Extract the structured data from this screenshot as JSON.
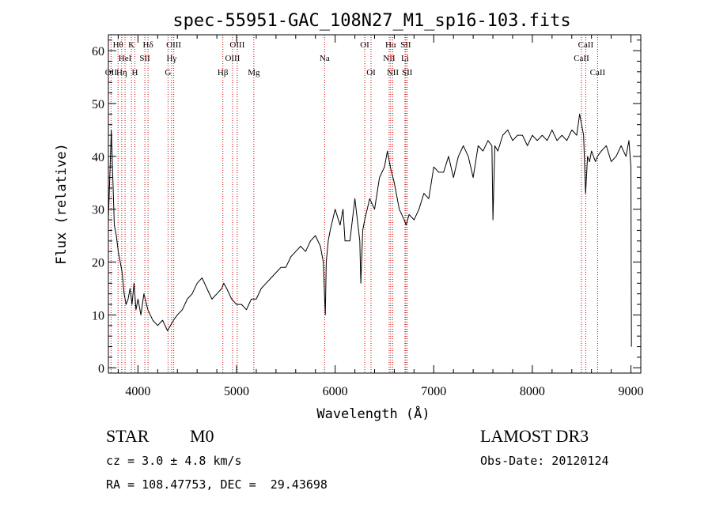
{
  "chart_data": {
    "type": "line",
    "title": "spec-55951-GAC_108N27_M1_sp16-103.fits",
    "xlabel": "Wavelength (Å)",
    "ylabel": "Flux (relative)",
    "xlim": [
      3700,
      9100
    ],
    "ylim": [
      -1,
      63
    ],
    "x_ticks": [
      4000,
      5000,
      6000,
      7000,
      8000,
      9000
    ],
    "y_ticks": [
      0,
      10,
      20,
      30,
      40,
      50,
      60
    ],
    "line_color": "#000000",
    "marker_color": "#cc0000",
    "series": [
      {
        "name": "spectrum",
        "x": [
          3700,
          3730,
          3760,
          3780,
          3800,
          3820,
          3840,
          3860,
          3880,
          3900,
          3920,
          3940,
          3960,
          3980,
          4000,
          4030,
          4060,
          4100,
          4150,
          4200,
          4250,
          4300,
          4330,
          4360,
          4400,
          4450,
          4500,
          4550,
          4600,
          4650,
          4700,
          4750,
          4800,
          4850,
          4870,
          4900,
          4950,
          5000,
          5050,
          5100,
          5150,
          5200,
          5250,
          5300,
          5350,
          5400,
          5450,
          5500,
          5550,
          5600,
          5650,
          5700,
          5750,
          5800,
          5850,
          5880,
          5900,
          5910,
          5930,
          5950,
          6000,
          6050,
          6080,
          6100,
          6150,
          6200,
          6250,
          6260,
          6280,
          6300,
          6350,
          6400,
          6450,
          6500,
          6530,
          6560,
          6600,
          6650,
          6700,
          6720,
          6750,
          6800,
          6850,
          6900,
          6950,
          7000,
          7050,
          7100,
          7150,
          7200,
          7250,
          7300,
          7350,
          7400,
          7450,
          7500,
          7550,
          7590,
          7600,
          7620,
          7650,
          7700,
          7750,
          7800,
          7850,
          7900,
          7950,
          8000,
          8050,
          8100,
          8150,
          8200,
          8250,
          8300,
          8350,
          8400,
          8450,
          8480,
          8500,
          8520,
          8540,
          8560,
          8580,
          8600,
          8640,
          8660,
          8700,
          8750,
          8800,
          8850,
          8900,
          8950,
          8980,
          9000,
          9005
        ],
        "y": [
          28,
          45,
          27,
          25,
          22,
          20,
          18,
          14,
          12,
          13,
          15,
          12,
          16,
          11,
          13,
          10,
          14,
          11,
          9,
          8,
          9,
          7,
          8,
          9,
          10,
          11,
          13,
          14,
          16,
          17,
          15,
          13,
          14,
          15,
          16,
          15,
          13,
          12,
          12,
          11,
          13,
          13,
          15,
          16,
          17,
          18,
          19,
          19,
          21,
          22,
          23,
          22,
          24,
          25,
          23,
          20,
          10,
          20,
          24,
          26,
          30,
          27,
          30,
          24,
          24,
          32,
          24,
          16,
          26,
          28,
          32,
          30,
          36,
          38,
          41,
          38,
          35,
          30,
          28,
          27,
          29,
          28,
          30,
          33,
          32,
          38,
          37,
          37,
          40,
          36,
          40,
          42,
          40,
          36,
          42,
          41,
          43,
          42,
          28,
          42,
          41,
          44,
          45,
          43,
          44,
          44,
          42,
          44,
          43,
          44,
          43,
          45,
          43,
          44,
          43,
          45,
          44,
          48,
          46,
          44,
          33,
          40,
          39,
          41,
          39,
          40,
          41,
          42,
          39,
          40,
          42,
          40,
          43,
          38,
          4
        ]
      }
    ],
    "line_markers": [
      {
        "wl": 3727,
        "labels": [
          "OII"
        ],
        "rows": [
          2
        ]
      },
      {
        "wl": 3798,
        "labels": [
          "Hθ"
        ],
        "rows": [
          0
        ]
      },
      {
        "wl": 3835,
        "labels": [
          "Hη"
        ],
        "rows": [
          2
        ]
      },
      {
        "wl": 3869,
        "labels": [
          "HeI"
        ],
        "rows": [
          1
        ]
      },
      {
        "wl": 3934,
        "labels": [
          "K"
        ],
        "rows": [
          0
        ]
      },
      {
        "wl": 3969,
        "labels": [
          "H"
        ],
        "rows": [
          2
        ]
      },
      {
        "wl": 4070,
        "labels": [
          "SII"
        ],
        "rows": [
          1
        ]
      },
      {
        "wl": 4102,
        "labels": [
          "Hδ"
        ],
        "rows": [
          0
        ]
      },
      {
        "wl": 4305,
        "labels": [
          "G"
        ],
        "rows": [
          2
        ]
      },
      {
        "wl": 4341,
        "labels": [
          "Hγ"
        ],
        "rows": [
          1
        ]
      },
      {
        "wl": 4363,
        "labels": [
          "OIII"
        ],
        "rows": [
          0
        ]
      },
      {
        "wl": 4861,
        "labels": [
          "Hβ"
        ],
        "rows": [
          2
        ]
      },
      {
        "wl": 4959,
        "labels": [
          "OIII"
        ],
        "rows": [
          1
        ]
      },
      {
        "wl": 5007,
        "labels": [
          "OIII"
        ],
        "rows": [
          0
        ]
      },
      {
        "wl": 5175,
        "labels": [
          "Mg"
        ],
        "rows": [
          2
        ]
      },
      {
        "wl": 5893,
        "labels": [
          "Na"
        ],
        "rows": [
          1
        ]
      },
      {
        "wl": 6300,
        "labels": [
          "OI"
        ],
        "rows": [
          0
        ]
      },
      {
        "wl": 6364,
        "labels": [
          "OI"
        ],
        "rows": [
          2
        ]
      },
      {
        "wl": 6548,
        "labels": [
          "NII"
        ],
        "rows": [
          1
        ]
      },
      {
        "wl": 6563,
        "labels": [
          "Hα"
        ],
        "rows": [
          0
        ]
      },
      {
        "wl": 6584,
        "labels": [
          "NII"
        ],
        "rows": [
          2
        ]
      },
      {
        "wl": 6708,
        "labels": [
          "Li"
        ],
        "rows": [
          1
        ]
      },
      {
        "wl": 6716,
        "labels": [
          "SII"
        ],
        "rows": [
          0
        ]
      },
      {
        "wl": 6731,
        "labels": [
          "SII"
        ],
        "rows": [
          2
        ]
      },
      {
        "wl": 8498,
        "labels": [
          "CaII"
        ],
        "rows": [
          1
        ]
      },
      {
        "wl": 8542,
        "labels": [
          "CaII"
        ],
        "rows": [
          0
        ]
      },
      {
        "wl": 8662,
        "labels": [
          "CaII"
        ],
        "rows": [
          2
        ]
      }
    ]
  },
  "info": {
    "class_label": "STAR",
    "subclass": "M0",
    "survey": "LAMOST DR3",
    "cz": "cz = 3.0 ± 4.8 km/s",
    "obs_date": "Obs-Date: 20120124",
    "coords": "RA = 108.47753, DEC =  29.43698"
  }
}
